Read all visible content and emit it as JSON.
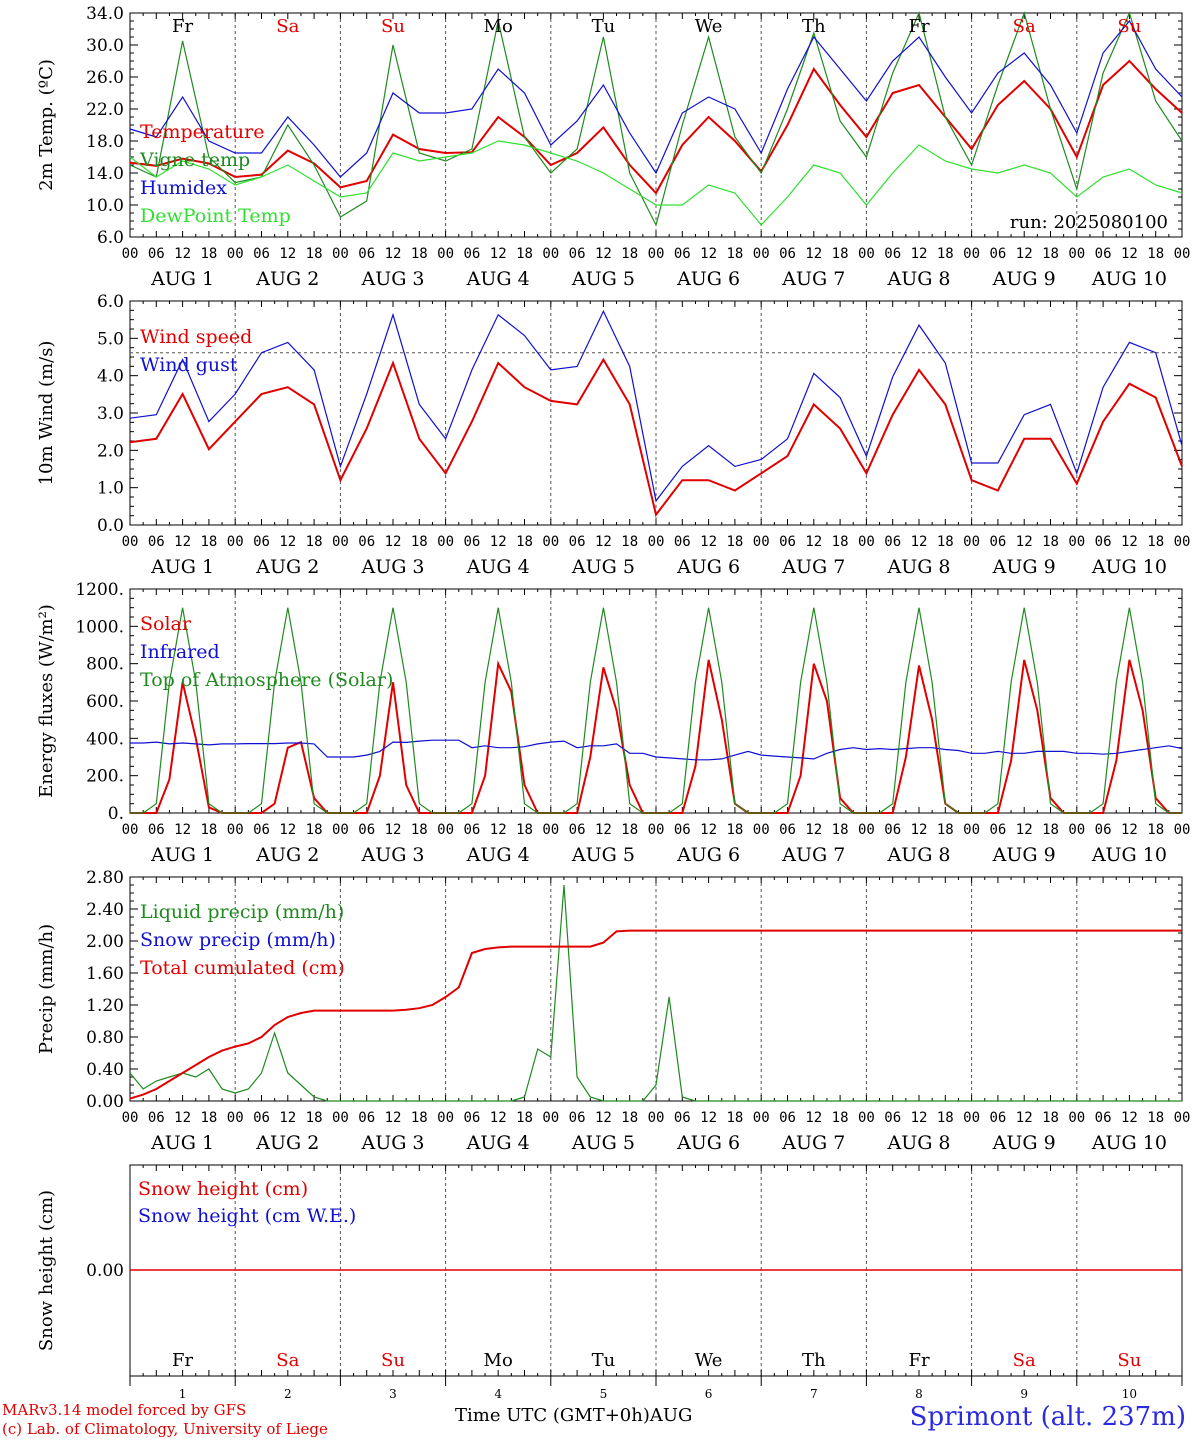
{
  "colors": {
    "red": "#e00000",
    "dkgreen": "#1f8a1f",
    "blue": "#1010d0",
    "ltgreen": "#30e030",
    "grid": "#555555"
  },
  "day_abbrevs": [
    "Fr",
    "Sa",
    "Su",
    "Mo",
    "Tu",
    "We",
    "Th",
    "Fr",
    "Sa",
    "Su"
  ],
  "day_colors": [
    "#000000",
    "#e00000",
    "#e00000",
    "#000000",
    "#000000",
    "#000000",
    "#000000",
    "#000000",
    "#e00000",
    "#e00000"
  ],
  "hour_ticks": [
    "00",
    "06",
    "12",
    "18"
  ],
  "final_hour": "00",
  "date_labels": [
    "AUG  1",
    "AUG  2",
    "AUG  3",
    "AUG  4",
    "AUG  5",
    "AUG  6",
    "AUG  7",
    "AUG  8",
    "AUG  9",
    "AUG 10"
  ],
  "day_numbers": [
    "1",
    "2",
    "3",
    "4",
    "5",
    "6",
    "7",
    "8",
    "9",
    "10"
  ],
  "footer": {
    "model": "MARv3.14 model forced by GFS",
    "lab": "(c) Lab. of Climatology, University of Liege",
    "axis_title": "Time UTC (GMT+0h)AUG",
    "station": "Sprimont (alt. 237m)"
  },
  "chart_data": [
    {
      "type": "line",
      "ylabel": "2m Temp. (ºC)",
      "ylim": [
        6.0,
        34.0
      ],
      "ytick_labels": [
        "6.0",
        "10.0",
        "14.0",
        "18.0",
        "22.0",
        "26.0",
        "30.0",
        "34.0"
      ],
      "run_label": "run: 2025080100",
      "x_hours": [
        0,
        6,
        12,
        18,
        24,
        30,
        36,
        42,
        48,
        54,
        60,
        66,
        72,
        78,
        84,
        90,
        96,
        102,
        108,
        114,
        120,
        126,
        132,
        138,
        144,
        150,
        156,
        162,
        168,
        174,
        180,
        186,
        192,
        198,
        204,
        210,
        216,
        222,
        228,
        234,
        240
      ],
      "series": [
        {
          "name": "Temperature",
          "color": "red",
          "values": [
            15.3,
            14.9,
            15.8,
            15.2,
            13.5,
            13.8,
            16.8,
            15.2,
            12.2,
            13.0,
            18.8,
            17.0,
            16.5,
            16.6,
            21.0,
            18.5,
            15.0,
            16.5,
            19.7,
            15.0,
            11.5,
            17.5,
            21.0,
            18.0,
            14.2,
            20.0,
            27.0,
            22.5,
            18.5,
            24.0,
            25.0,
            21.0,
            17.0,
            22.5,
            25.5,
            22.0,
            16.0,
            25.0,
            28.0,
            24.5,
            21.5
          ]
        },
        {
          "name": "Vigne temp",
          "color": "dkgreen",
          "values": [
            15.0,
            13.5,
            30.5,
            16.0,
            12.8,
            13.5,
            20.0,
            15.0,
            8.5,
            10.5,
            30.0,
            16.5,
            15.5,
            17.0,
            33.0,
            18.5,
            14.0,
            17.0,
            31.0,
            14.0,
            7.5,
            20.0,
            31.0,
            18.5,
            14.0,
            22.0,
            31.5,
            20.5,
            16.0,
            26.5,
            35.0,
            21.0,
            15.0,
            25.0,
            35.0,
            22.0,
            12.0,
            26.5,
            36.0,
            23.0,
            18.0
          ]
        },
        {
          "name": "Humidex",
          "color": "blue",
          "values": [
            19.5,
            18.5,
            23.5,
            18.0,
            16.5,
            16.5,
            21.0,
            17.5,
            13.5,
            16.5,
            24.0,
            21.5,
            21.5,
            22.0,
            27.0,
            24.0,
            17.5,
            20.5,
            25.0,
            19.0,
            14.0,
            21.5,
            23.5,
            22.0,
            16.5,
            24.5,
            31.0,
            27.0,
            23.0,
            28.0,
            31.0,
            26.0,
            21.5,
            26.5,
            29.0,
            25.0,
            19.0,
            29.0,
            33.0,
            27.0,
            23.5
          ]
        },
        {
          "name": "DewPoint Temp",
          "color": "ltgreen",
          "values": [
            16.0,
            13.5,
            15.5,
            14.5,
            12.5,
            13.5,
            15.0,
            13.0,
            11.0,
            11.5,
            16.5,
            15.5,
            16.0,
            16.5,
            18.0,
            17.5,
            16.5,
            15.5,
            14.0,
            12.0,
            10.0,
            10.0,
            12.5,
            11.5,
            7.5,
            11.0,
            15.0,
            14.0,
            10.0,
            14.0,
            17.5,
            15.5,
            14.5,
            14.0,
            15.0,
            14.0,
            11.0,
            13.5,
            14.5,
            12.5,
            11.5
          ]
        }
      ]
    },
    {
      "type": "line",
      "ylabel": "10m Wind (m/s)",
      "ylim": [
        0.0,
        6.5
      ],
      "ytick_labels": [
        "0.0",
        "1.0",
        "2.0",
        "3.0",
        "4.0",
        "5.0",
        "6.0"
      ],
      "ref_line": 5.0,
      "x_hours": [
        0,
        6,
        12,
        18,
        24,
        30,
        36,
        42,
        48,
        54,
        60,
        66,
        72,
        78,
        84,
        90,
        96,
        102,
        108,
        114,
        120,
        126,
        132,
        138,
        144,
        150,
        156,
        162,
        168,
        174,
        180,
        186,
        192,
        198,
        204,
        210,
        216,
        222,
        228,
        234,
        240
      ],
      "series": [
        {
          "name": "Wind speed",
          "color": "red",
          "values": [
            2.4,
            2.5,
            3.8,
            2.2,
            3.0,
            3.8,
            4.0,
            3.5,
            1.3,
            2.8,
            4.7,
            2.5,
            1.5,
            3.0,
            4.7,
            4.0,
            3.6,
            3.5,
            4.8,
            3.5,
            0.3,
            1.3,
            1.3,
            1.0,
            1.5,
            2.0,
            3.5,
            2.8,
            1.5,
            3.2,
            4.5,
            3.5,
            1.3,
            1.0,
            2.5,
            2.5,
            1.2,
            3.0,
            4.1,
            3.7,
            1.7
          ]
        },
        {
          "name": "Wind gust",
          "color": "blue",
          "values": [
            3.1,
            3.2,
            4.8,
            3.0,
            3.8,
            5.0,
            5.3,
            4.5,
            1.7,
            3.8,
            6.1,
            3.5,
            2.5,
            4.5,
            6.1,
            5.5,
            4.5,
            4.6,
            6.2,
            4.6,
            0.7,
            1.7,
            2.3,
            1.7,
            1.9,
            2.5,
            4.4,
            3.7,
            2.0,
            4.3,
            5.8,
            4.7,
            1.8,
            1.8,
            3.2,
            3.5,
            1.5,
            4.0,
            5.3,
            5.0,
            2.3
          ]
        }
      ]
    },
    {
      "type": "line",
      "ylabel": "Energy fluxes (W/m²)",
      "ylim": [
        0,
        1200
      ],
      "ytick_labels": [
        "0.",
        "200.",
        "400.",
        "600.",
        "800.",
        "1000.",
        "1200."
      ],
      "x_hours": [
        0,
        3,
        6,
        9,
        12,
        15,
        18,
        21,
        24,
        27,
        30,
        33,
        36,
        39,
        42,
        45,
        48,
        51,
        54,
        57,
        60,
        63,
        66,
        69,
        72,
        75,
        78,
        81,
        84,
        87,
        90,
        93,
        96,
        99,
        102,
        105,
        108,
        111,
        114,
        117,
        120,
        123,
        126,
        129,
        132,
        135,
        138,
        141,
        144,
        147,
        150,
        153,
        156,
        159,
        162,
        165,
        168,
        171,
        174,
        177,
        180,
        183,
        186,
        189,
        192,
        195,
        198,
        201,
        204,
        207,
        210,
        213,
        216,
        219,
        222,
        225,
        228,
        231,
        234,
        237,
        240
      ],
      "series": [
        {
          "name": "Solar",
          "color": "red",
          "values": [
            0,
            0,
            0,
            180,
            700,
            400,
            30,
            0,
            0,
            0,
            0,
            50,
            350,
            380,
            80,
            0,
            0,
            0,
            0,
            200,
            700,
            150,
            0,
            0,
            0,
            0,
            0,
            200,
            800,
            650,
            150,
            0,
            0,
            0,
            0,
            300,
            780,
            550,
            150,
            0,
            0,
            0,
            0,
            250,
            820,
            500,
            50,
            0,
            0,
            0,
            0,
            200,
            800,
            600,
            80,
            0,
            0,
            0,
            0,
            300,
            790,
            500,
            50,
            0,
            0,
            0,
            0,
            280,
            820,
            550,
            80,
            0,
            0,
            0,
            0,
            280,
            820,
            550,
            80,
            0,
            0
          ]
        },
        {
          "name": "Infrared",
          "color": "blue",
          "values": [
            375,
            375,
            380,
            370,
            375,
            370,
            365,
            370,
            370,
            372,
            372,
            372,
            375,
            375,
            370,
            300,
            300,
            300,
            310,
            330,
            380,
            378,
            385,
            390,
            390,
            390,
            350,
            360,
            350,
            350,
            355,
            370,
            380,
            385,
            350,
            360,
            360,
            370,
            320,
            320,
            300,
            295,
            290,
            285,
            285,
            290,
            310,
            330,
            310,
            305,
            300,
            295,
            290,
            320,
            340,
            350,
            340,
            345,
            340,
            345,
            350,
            350,
            340,
            335,
            320,
            320,
            330,
            320,
            320,
            330,
            330,
            330,
            320,
            320,
            315,
            320,
            330,
            340,
            350,
            360,
            345
          ]
        },
        {
          "name": "Top of Atmosphere (Solar)",
          "color": "dkgreen",
          "values": [
            0,
            0,
            50,
            700,
            1100,
            700,
            50,
            0,
            0,
            0,
            50,
            700,
            1100,
            700,
            50,
            0,
            0,
            0,
            50,
            700,
            1100,
            700,
            50,
            0,
            0,
            0,
            50,
            700,
            1100,
            700,
            50,
            0,
            0,
            0,
            50,
            700,
            1100,
            700,
            50,
            0,
            0,
            0,
            50,
            700,
            1100,
            700,
            50,
            0,
            0,
            0,
            50,
            700,
            1100,
            700,
            50,
            0,
            0,
            0,
            50,
            700,
            1100,
            700,
            50,
            0,
            0,
            0,
            50,
            700,
            1100,
            700,
            50,
            0,
            0,
            0,
            50,
            700,
            1100,
            700,
            50,
            0,
            0
          ]
        }
      ]
    },
    {
      "type": "line",
      "ylabel": "Precip (mm/h)",
      "ylim": [
        0.0,
        2.8
      ],
      "ytick_labels": [
        "0.00",
        "0.40",
        "0.80",
        "1.20",
        "1.60",
        "2.00",
        "2.40",
        "2.80"
      ],
      "x_hours": [
        0,
        3,
        6,
        9,
        12,
        15,
        18,
        21,
        24,
        27,
        30,
        33,
        36,
        39,
        42,
        45,
        48,
        51,
        54,
        57,
        60,
        63,
        66,
        69,
        72,
        75,
        78,
        81,
        84,
        87,
        90,
        93,
        96,
        99,
        102,
        105,
        108,
        111,
        114,
        117,
        120,
        123,
        126,
        129,
        132,
        135,
        138,
        141,
        144,
        147,
        150,
        153,
        156,
        159,
        162,
        165,
        168,
        171,
        174,
        177,
        180,
        183,
        186,
        189,
        192,
        195,
        198,
        201,
        204,
        207,
        210,
        213,
        216,
        219,
        222,
        225,
        228,
        231,
        234,
        237,
        240
      ],
      "series": [
        {
          "name": "Liquid precip (mm/h)",
          "color": "dkgreen",
          "values": [
            0.35,
            0.15,
            0.25,
            0.3,
            0.35,
            0.3,
            0.4,
            0.15,
            0.1,
            0.15,
            0.35,
            0.85,
            0.35,
            0.2,
            0.05,
            0.0,
            0.0,
            0.0,
            0.0,
            0.0,
            0.0,
            0.0,
            0.0,
            0.0,
            0.0,
            0.0,
            0.0,
            0.0,
            0.0,
            0.0,
            0.05,
            0.65,
            0.55,
            2.7,
            0.3,
            0.05,
            0.0,
            0.0,
            0.0,
            0.0,
            0.2,
            1.3,
            0.05,
            0.0,
            0.0,
            0.0,
            0.0,
            0.0,
            0.0,
            0.0,
            0.0,
            0.0,
            0.0,
            0.0,
            0.0,
            0.0,
            0.0,
            0.0,
            0.0,
            0.0,
            0.0,
            0.0,
            0.0,
            0.0,
            0.0,
            0.0,
            0.0,
            0.0,
            0.0,
            0.0,
            0.0,
            0.0,
            0.0,
            0.0,
            0.0,
            0.0,
            0.0,
            0.0,
            0.0,
            0.0,
            0.0
          ]
        },
        {
          "name": "Snow precip (mm/h)",
          "color": "blue",
          "values": []
        },
        {
          "name": "Total cumulated (cm)",
          "color": "red",
          "values": [
            0.03,
            0.08,
            0.15,
            0.25,
            0.35,
            0.45,
            0.55,
            0.63,
            0.68,
            0.72,
            0.8,
            0.95,
            1.05,
            1.1,
            1.13,
            1.13,
            1.13,
            1.13,
            1.13,
            1.13,
            1.13,
            1.14,
            1.16,
            1.2,
            1.3,
            1.42,
            1.85,
            1.9,
            1.92,
            1.93,
            1.93,
            1.93,
            1.93,
            1.93,
            1.93,
            1.93,
            1.98,
            2.12,
            2.13,
            2.13,
            2.13,
            2.13,
            2.13,
            2.13,
            2.13,
            2.13,
            2.13,
            2.13,
            2.13,
            2.13,
            2.13,
            2.13,
            2.13,
            2.13,
            2.13,
            2.13,
            2.13,
            2.13,
            2.13,
            2.13,
            2.13,
            2.13,
            2.13,
            2.13,
            2.13,
            2.13,
            2.13,
            2.13,
            2.13,
            2.13,
            2.13,
            2.13,
            2.13,
            2.13,
            2.13,
            2.13,
            2.13,
            2.13,
            2.13,
            2.13,
            2.13
          ]
        }
      ]
    },
    {
      "type": "line",
      "ylabel": "Snow height (cm)",
      "ytick_labels": [
        "0.00"
      ],
      "series": [
        {
          "name": "Snow height (cm)",
          "color": "red",
          "values": [
            0,
            0
          ]
        },
        {
          "name": "Snow height (cm W.E.)",
          "color": "blue",
          "values": []
        }
      ]
    }
  ]
}
